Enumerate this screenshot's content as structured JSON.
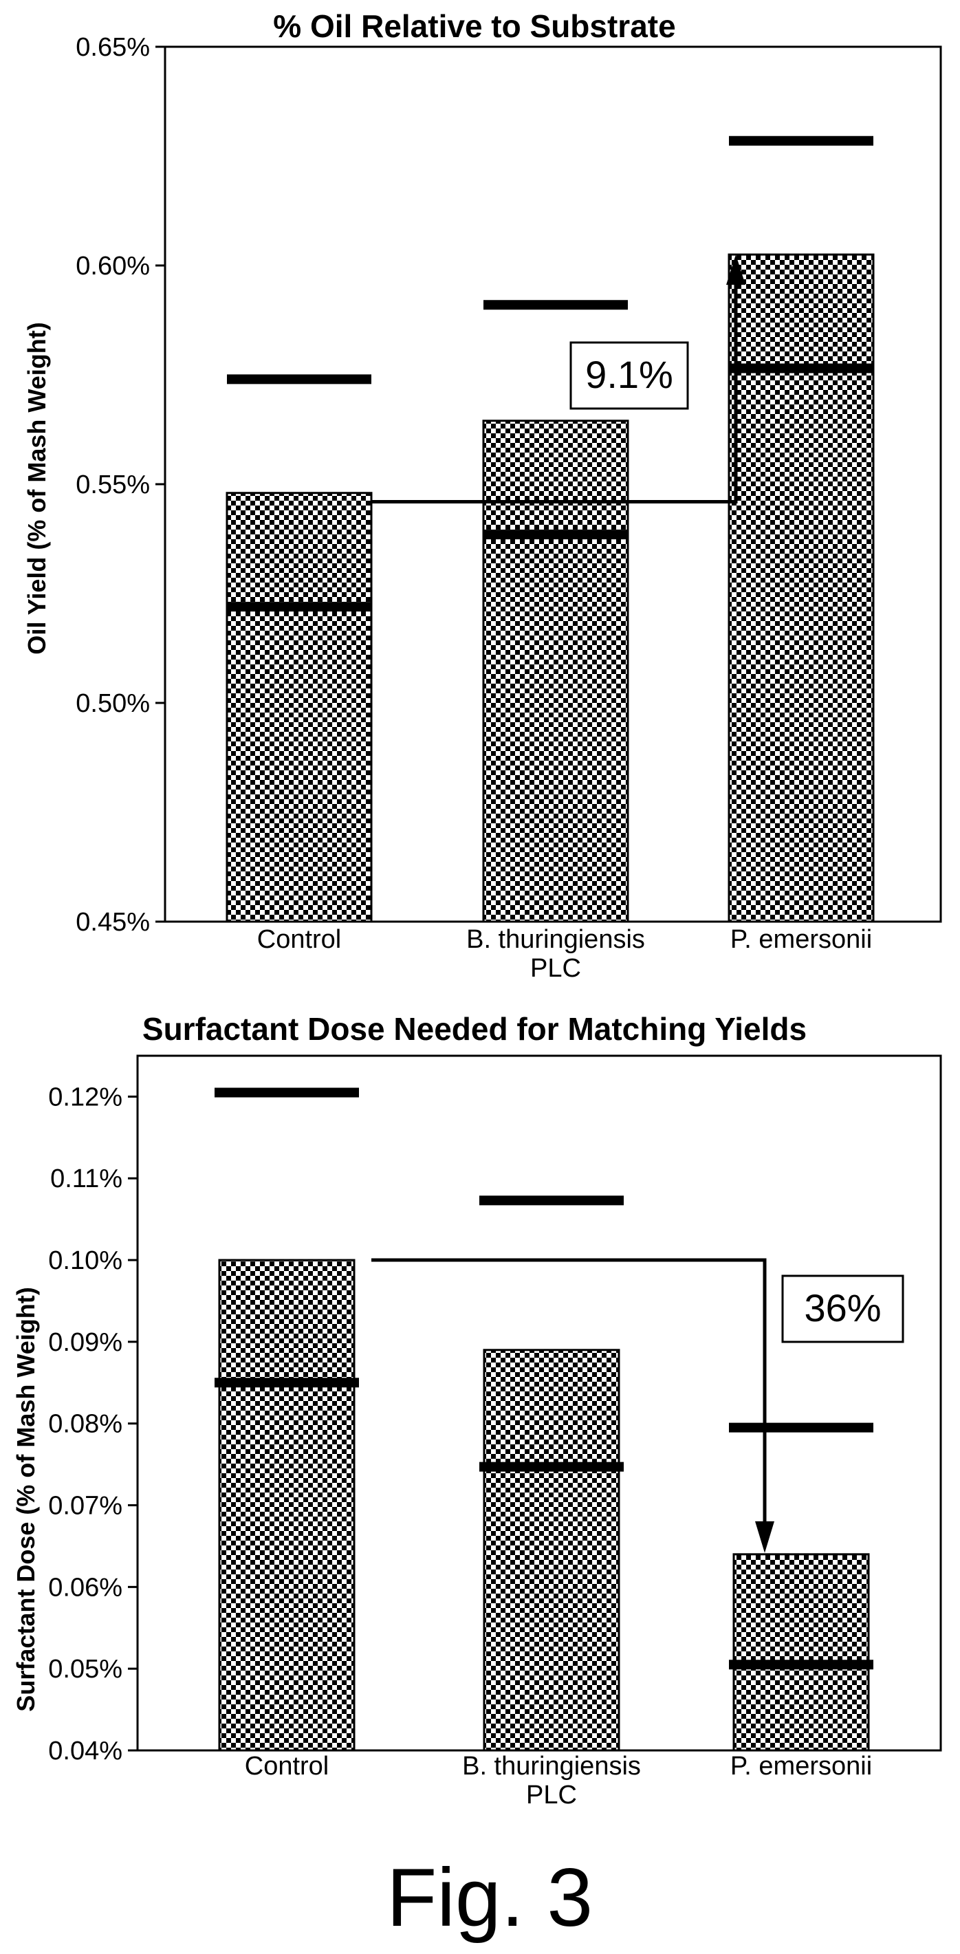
{
  "figure": {
    "caption": "Fig. 3"
  },
  "chart_data": [
    {
      "type": "bar",
      "title": "% Oil Relative to Substrate",
      "xlabel": "",
      "ylabel": "Oil Yield (% of Mash Weight)",
      "categories": [
        {
          "line1": "Control",
          "line2": ""
        },
        {
          "line1": "B. thuringiensis",
          "line2": "PLC"
        },
        {
          "line1": "P. emersonii",
          "line2": ""
        }
      ],
      "values": [
        0.548,
        0.5645,
        0.6025
      ],
      "error_low": [
        0.522,
        0.5385,
        0.5765
      ],
      "error_high": [
        0.574,
        0.591,
        0.6285
      ],
      "ylim": [
        0.45,
        0.65
      ],
      "yticks": [
        0.45,
        0.5,
        0.55,
        0.6,
        0.65
      ],
      "ytick_labels": [
        "0.45%",
        "0.50%",
        "0.55%",
        "0.60%",
        "0.65%"
      ],
      "annotation": {
        "text": "9.1%",
        "from_category": 0,
        "to_category": 2,
        "direction": "up"
      },
      "pattern": "checkerboard",
      "grid": false,
      "legend": "none"
    },
    {
      "type": "bar",
      "title": "Surfactant Dose Needed for Matching Yields",
      "xlabel": "",
      "ylabel": "Surfactant Dose (% of Mash Weight)",
      "categories": [
        {
          "line1": "Control",
          "line2": ""
        },
        {
          "line1": "B. thuringiensis",
          "line2": "PLC"
        },
        {
          "line1": "P. emersonii",
          "line2": ""
        }
      ],
      "values": [
        0.1,
        0.089,
        0.064
      ],
      "error_low": [
        0.085,
        0.0747,
        0.0505
      ],
      "error_high": [
        0.1205,
        0.1073,
        0.0795
      ],
      "ylim": [
        0.04,
        0.125
      ],
      "yticks": [
        0.04,
        0.05,
        0.06,
        0.07,
        0.08,
        0.09,
        0.1,
        0.11,
        0.12
      ],
      "ytick_labels": [
        "0.04%",
        "0.05%",
        "0.06%",
        "0.07%",
        "0.08%",
        "0.09%",
        "0.10%",
        "0.11%",
        "0.12%"
      ],
      "annotation": {
        "text": "36%",
        "from_category": 0,
        "to_category": 2,
        "direction": "down"
      },
      "pattern": "checkerboard",
      "grid": false,
      "legend": "none"
    }
  ]
}
